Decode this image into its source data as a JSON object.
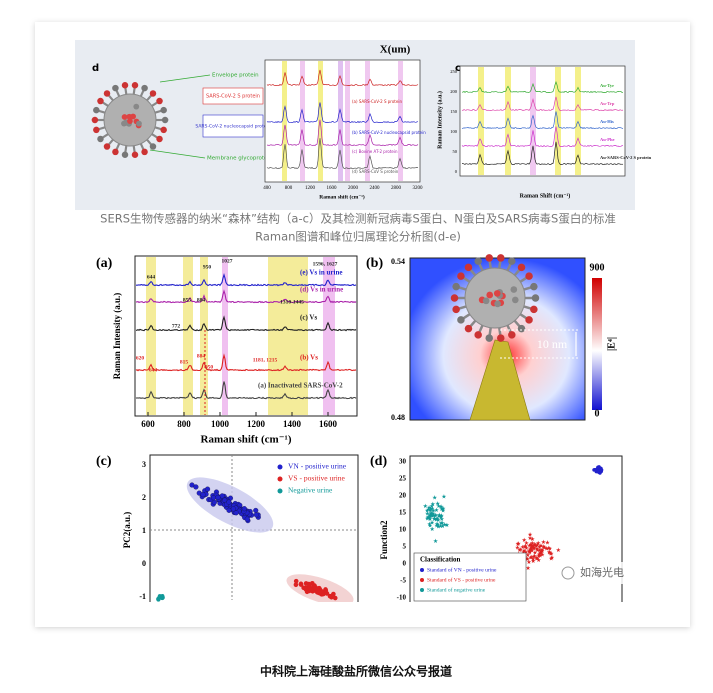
{
  "top_figure": {
    "top_axis": "X(um)",
    "panel_d": {
      "label": "d",
      "envelope": "Envelope protein",
      "s_protein": "SARS-CoV-2 S protein",
      "n_protein": "SARS-CoV-2 nucleocapsid protein",
      "membrane": "Membrane glycoprotein"
    },
    "panel_mid": {
      "x_axis": "Raman shift (cm⁻¹)",
      "xticks": [
        "400",
        "800",
        "1200",
        "1600",
        "2000",
        "2400",
        "2800",
        "3200"
      ],
      "traces": [
        "(a) SARS-CoV-2 S protein",
        "(b) SARS-CoV-2 nucleocapsid protein",
        "(c) Bovine AT-2 protein",
        "(d) SARS-CoV S protein"
      ]
    },
    "panel_c": {
      "label": "c",
      "y_axis": "Raman Intensity (a.u.)",
      "x_axis": "Raman Shift (cm⁻¹)",
      "traces": [
        "Au-Tyr",
        "Au-Trp",
        "Au-His",
        "Au-Phe",
        "Au-SARS-CoV-2 S protein"
      ],
      "yticks": [
        "250",
        "200",
        "150",
        "100",
        "50",
        "0"
      ]
    }
  },
  "caption": [
    "SERS生物传感器的纳米“森林”结构（a-c）及其检测新冠病毒S蛋白、N蛋白及SARS病毒S蛋白的标准",
    "Raman图谱和峰位归属理论分析图(d-e)"
  ],
  "panel_a": {
    "label": "(a)",
    "y_axis": "Raman Intensity (a.u.)",
    "x_axis": "Raman shift (cm⁻¹)",
    "xticks": [
      "600",
      "800",
      "1000",
      "1200",
      "1400",
      "1600"
    ],
    "traces": [
      "(e) Vs in urine",
      "(d) Vs in urine",
      "(c) Vs",
      "(b) Vs",
      "(a) Inactivated SARS-CoV-2"
    ],
    "peaks": [
      "644",
      "950",
      "1027",
      "1596, 1627",
      "855",
      "884",
      "1310-1445",
      "772",
      "620",
      "644",
      "815",
      "884",
      "950",
      "1181, 1215"
    ]
  },
  "panel_b": {
    "label": "(b)",
    "y_top": "0.54",
    "y_bottom": "0.48",
    "scale_max": "900",
    "scale_min": "0",
    "scale_label": "|E⁴|",
    "annotation": "10 nm"
  },
  "panel_c": {
    "label": "(c)",
    "y_axis": "PC2(a.u.)",
    "yticks": [
      "3",
      "2",
      "1",
      "0",
      "-1"
    ],
    "legend": [
      "VN - positive urine",
      "VS - positive urine",
      "Negative urine"
    ]
  },
  "panel_d": {
    "label": "(d)",
    "y_axis": "Function2",
    "yticks": [
      "30",
      "25",
      "20",
      "15",
      "10",
      "5",
      "0",
      "-5",
      "-10"
    ],
    "legend_title": "Classification",
    "legend": [
      "Standard of VN - positive urine",
      "Standard of VS - positive urine",
      "Standard of negative urine"
    ]
  },
  "watermark": "如海光电",
  "footer": "中科院上海硅酸盐所微信公众号报道"
}
